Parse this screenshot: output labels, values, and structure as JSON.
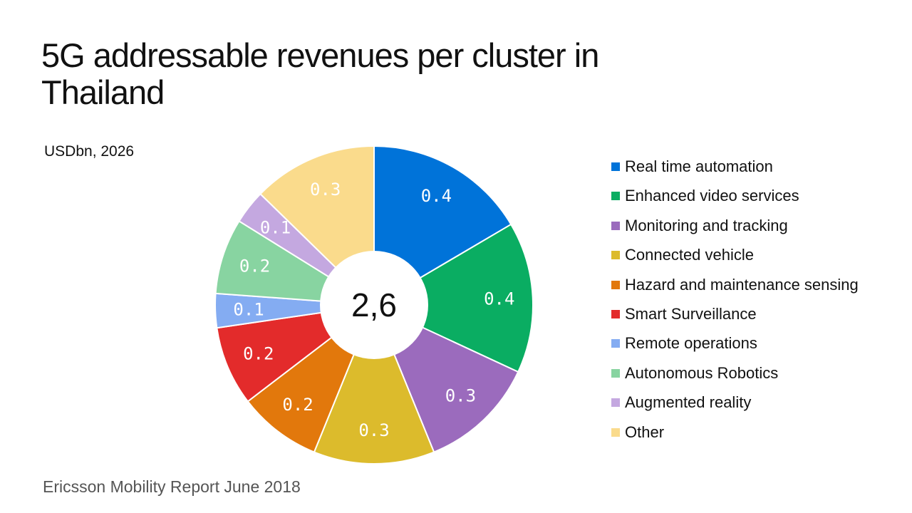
{
  "chart_data": {
    "type": "pie",
    "title": "5G addressable revenues per cluster in Thailand",
    "unit_label": "USDbn, 2026",
    "total_label": "2,6",
    "legend_position": "right",
    "slices": [
      {
        "name": "Real time automation",
        "label": "0.4",
        "value": 0.43,
        "color": "#0073d9"
      },
      {
        "name": "Enhanced video services",
        "label": "0.4",
        "value": 0.4,
        "color": "#0aad62"
      },
      {
        "name": "Monitoring and tracking",
        "label": "0.3",
        "value": 0.31,
        "color": "#9b6bbd"
      },
      {
        "name": "Connected vehicle",
        "label": "0.3",
        "value": 0.32,
        "color": "#dcbb2c"
      },
      {
        "name": "Hazard and maintenance sensing",
        "label": "0.2",
        "value": 0.22,
        "color": "#e2780c"
      },
      {
        "name": "Smart Surveillance",
        "label": "0.2",
        "value": 0.21,
        "color": "#e32b2b"
      },
      {
        "name": "Remote operations",
        "label": "0.1",
        "value": 0.09,
        "color": "#84acf2"
      },
      {
        "name": "Autonomous Robotics",
        "label": "0.2",
        "value": 0.2,
        "color": "#88d4a1"
      },
      {
        "name": "Augmented reality",
        "label": "0.1",
        "value": 0.09,
        "color": "#c4a8e0"
      },
      {
        "name": "Other",
        "label": "0.3",
        "value": 0.33,
        "color": "#fadb8c"
      }
    ]
  },
  "source": "Ericsson Mobility Report June 2018"
}
